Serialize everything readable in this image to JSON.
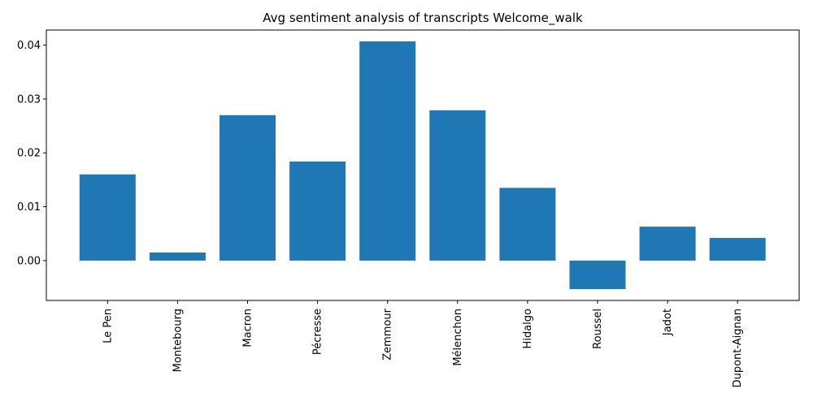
{
  "chart_data": {
    "type": "bar",
    "title": "Avg sentiment analysis of transcripts Welcome_walk",
    "xlabel": "",
    "ylabel": "",
    "categories": [
      "Le Pen",
      "Montebourg",
      "Macron",
      "Pécresse",
      "Zemmour",
      "Mélenchon",
      "Hidalgo",
      "Roussel",
      "Jadot",
      "Dupont-Aignan"
    ],
    "values": [
      0.016,
      0.0015,
      0.027,
      0.0184,
      0.0407,
      0.0279,
      0.0135,
      -0.0053,
      0.0063,
      0.0042
    ],
    "ylim": [
      -0.0074,
      0.0428
    ],
    "yticks": [
      0.0,
      0.01,
      0.02,
      0.03,
      0.04
    ],
    "ytick_labels": [
      "0.00",
      "0.01",
      "0.02",
      "0.03",
      "0.04"
    ],
    "bar_color": "#1f77b4",
    "grid": false,
    "legend": "none"
  }
}
